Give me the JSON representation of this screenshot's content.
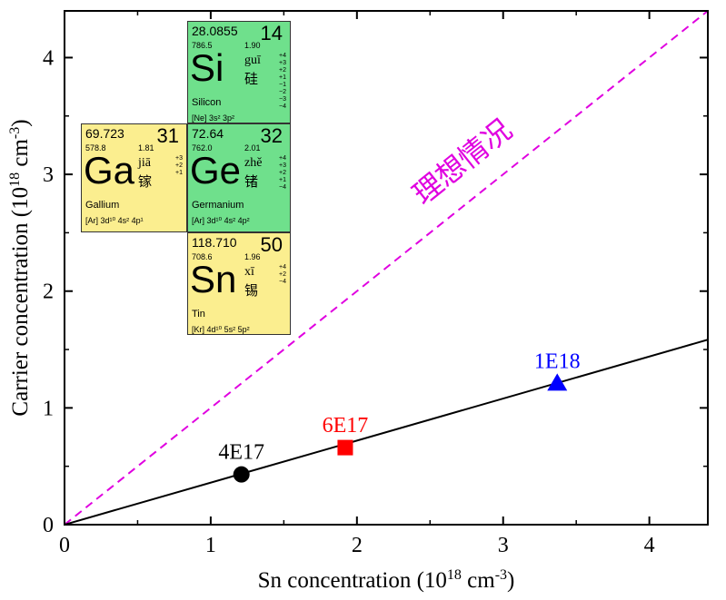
{
  "chart_data": {
    "type": "scatter",
    "xlabel": "Sn concentration (10^18 cm^-3)",
    "ylabel": "Carrier concentration (10^18 cm^-3)",
    "xlim": [
      0,
      4.4
    ],
    "ylim": [
      0,
      4.4
    ],
    "x_ticks": [
      "0",
      "1",
      "2",
      "3",
      "4"
    ],
    "y_ticks": [
      "0",
      "1",
      "2",
      "3",
      "4"
    ],
    "ideal_line_label": "理想情况",
    "ideal_line": {
      "style": "dashed",
      "color": "#e000e0",
      "slope": 1
    },
    "fit_line": {
      "style": "solid",
      "color": "#000000",
      "slope": 0.36
    },
    "points": [
      {
        "label": "4E17",
        "x": 1.21,
        "y": 0.43,
        "marker": "circle",
        "color": "#000000"
      },
      {
        "label": "6E17",
        "x": 1.92,
        "y": 0.66,
        "marker": "square",
        "color": "#ff0000"
      },
      {
        "label": "1E18",
        "x": 3.37,
        "y": 1.21,
        "marker": "triangle",
        "color": "#0000ff"
      }
    ]
  },
  "periodic_tiles": [
    {
      "id": "si",
      "color": "green",
      "mass": "28.0855",
      "number": "14",
      "melt": "786.5",
      "en": "1.90",
      "symbol": "Si",
      "pinyin": "guī",
      "hanzi": "硅",
      "name": "Silicon",
      "config": "[Ne] 3s² 3p²",
      "oxidation": [
        "+4",
        "+3",
        "+2",
        "+1",
        "−1",
        "−2",
        "−3",
        "−4"
      ]
    },
    {
      "id": "ga",
      "color": "yellow",
      "mass": "69.723",
      "number": "31",
      "melt": "578.8",
      "en": "1.81",
      "symbol": "Ga",
      "pinyin": "jiā",
      "hanzi": "镓",
      "name": "Gallium",
      "config": "[Ar] 3d¹⁰ 4s² 4p¹",
      "oxidation": [
        "+3",
        "+2",
        "+1"
      ]
    },
    {
      "id": "ge",
      "color": "green",
      "mass": "72.64",
      "number": "32",
      "melt": "762.0",
      "en": "2.01",
      "symbol": "Ge",
      "pinyin": "zhě",
      "hanzi": "锗",
      "name": "Germanium",
      "config": "[Ar] 3d¹⁰ 4s² 4p²",
      "oxidation": [
        "+4",
        "+3",
        "+2",
        "+1",
        "−4"
      ]
    },
    {
      "id": "sn",
      "color": "yellow",
      "mass": "118.710",
      "number": "50",
      "melt": "708.6",
      "en": "1.96",
      "symbol": "Sn",
      "pinyin": "xī",
      "hanzi": "锡",
      "name": "Tin",
      "config": "[Kr] 4d¹⁰ 5s² 5p²",
      "oxidation": [
        "+4",
        "+2",
        "−4"
      ]
    }
  ]
}
